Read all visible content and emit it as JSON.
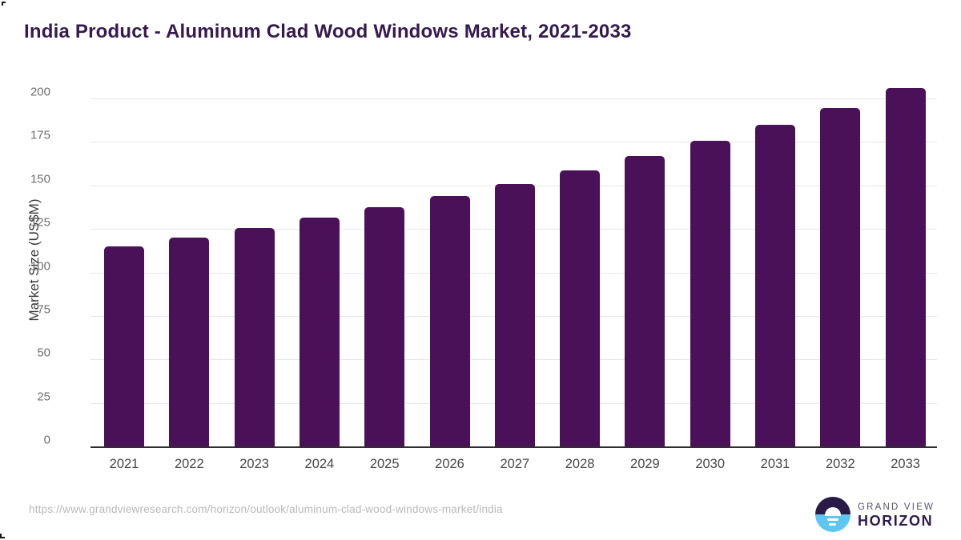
{
  "page": {
    "title": "India Product - Aluminum Clad Wood Windows Market, 2021-2033"
  },
  "chart_data": {
    "type": "bar",
    "title": "India Product - Aluminum Clad Wood Windows Market, 2021-2033",
    "categories": [
      "2021",
      "2022",
      "2023",
      "2024",
      "2025",
      "2026",
      "2027",
      "2028",
      "2029",
      "2030",
      "2031",
      "2032",
      "2033"
    ],
    "values": [
      115,
      120,
      125.5,
      131.5,
      137.5,
      144,
      151,
      158.5,
      167,
      175.5,
      185,
      194.5,
      206
    ],
    "xlabel": "",
    "ylabel": "Market Size (US$M)",
    "ylim": [
      0,
      200
    ],
    "yticks": [
      0,
      25,
      50,
      75,
      100,
      125,
      150,
      175,
      200
    ],
    "grid": true,
    "legend_position": "none",
    "bar_color": "#4a1158"
  },
  "footer": {
    "source_url": "https://www.grandviewresearch.com/horizon/outlook/aluminum-clad-wood-windows-market/india",
    "logo": {
      "brand_line1": "GRAND VIEW",
      "brand_line2": "HORIZON",
      "icon": "horizon-sunrise-icon",
      "icon_top_color": "#2a1a46",
      "icon_bottom_color": "#5ec6f0"
    }
  },
  "colors": {
    "title": "#35194f",
    "bar": "#4a1158",
    "gridline": "#e7e7e7",
    "axis_line": "#2f2f2f",
    "y_tick_label": "#6f6f6f",
    "x_tick_label": "#474747",
    "y_axis_title": "#3a3a3a",
    "source_url": "#b9b9b9"
  }
}
